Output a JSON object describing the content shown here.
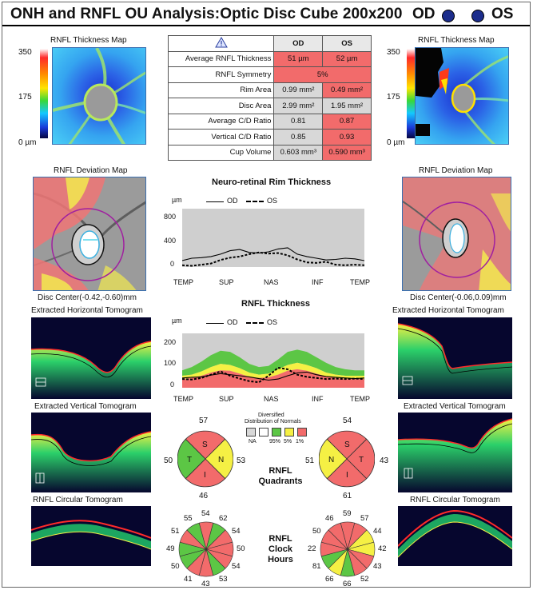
{
  "header": {
    "title": "ONH and RNFL OU Analysis:Optic Disc Cube 200x200",
    "od_label": "OD",
    "os_label": "OS"
  },
  "colors": {
    "red": "#f26b6b",
    "yellow": "#f5f044",
    "green": "#5cc645",
    "grey": "#d8d8d8",
    "eye_dot": "#1c2d8c"
  },
  "left": {
    "thickness_map_label": "RNFL Thickness Map",
    "scale_max": "350",
    "scale_mid": "175",
    "scale_min": "0 µm",
    "deviation_map_label": "RNFL Deviation Map",
    "disc_center": "Disc Center(-0.42,-0.60)mm",
    "horizontal_tomo_label": "Extracted Horizontal Tomogram",
    "vertical_tomo_label": "Extracted Vertical Tomogram",
    "circular_tomo_label": "RNFL Circular Tomogram"
  },
  "right": {
    "thickness_map_label": "RNFL Thickness Map",
    "scale_max": "350",
    "scale_mid": "175",
    "scale_min": "0 µm",
    "deviation_map_label": "RNFL Deviation Map",
    "disc_center": "Disc Center(-0.06,0.09)mm",
    "horizontal_tomo_label": "Extracted Horizontal Tomogram",
    "vertical_tomo_label": "Extracted Vertical Tomogram",
    "circular_tomo_label": "RNFL Circular Tomogram"
  },
  "params_table": {
    "warning_icon": "warning-triangle-icon",
    "col_od": "OD",
    "col_os": "OS",
    "rows": [
      {
        "name": "Average RNFL Thickness",
        "od": "51 µm",
        "os": "52 µm",
        "od_color": "red",
        "os_color": "red"
      },
      {
        "name": "RNFL Symmetry",
        "merged": "5%",
        "color": "red"
      },
      {
        "name": "Rim Area",
        "od": "0.99 mm²",
        "os": "0.49 mm²",
        "od_color": "grey",
        "os_color": "red"
      },
      {
        "name": "Disc Area",
        "od": "2.99 mm²",
        "os": "1.95 mm²",
        "od_color": "grey",
        "os_color": "grey"
      },
      {
        "name": "Average C/D Ratio",
        "od": "0.81",
        "os": "0.87",
        "od_color": "grey",
        "os_color": "red"
      },
      {
        "name": "Vertical C/D Ratio",
        "od": "0.85",
        "os": "0.93",
        "od_color": "grey",
        "os_color": "red"
      },
      {
        "name": "Cup Volume",
        "od": "0.603 mm³",
        "os": "0.590 mm³",
        "od_color": "grey",
        "os_color": "red"
      }
    ]
  },
  "rim_chart": {
    "title": "Neuro-retinal Rim Thickness",
    "unit": "µm",
    "legend_od": "OD",
    "legend_os": "OS",
    "yticks": [
      "800",
      "400",
      "0"
    ],
    "xticks": [
      "TEMP",
      "SUP",
      "NAS",
      "INF",
      "TEMP"
    ]
  },
  "rnfl_chart": {
    "title": "RNFL Thickness",
    "unit": "µm",
    "legend_od": "OD",
    "legend_os": "OS",
    "yticks": [
      "200",
      "100",
      "0"
    ],
    "xticks": [
      "TEMP",
      "SUP",
      "NAS",
      "INF",
      "TEMP"
    ]
  },
  "normative_legend": {
    "title_line1": "Diversified",
    "title_line2": "Distribution of Normals",
    "labels": [
      "NA",
      "95%",
      "5%",
      "1%"
    ]
  },
  "quadrants": {
    "title_line1": "RNFL",
    "title_line2": "Quadrants",
    "od": {
      "S": "57",
      "N": "53",
      "I": "46",
      "T": "50"
    },
    "os": {
      "S": "54",
      "N": "43",
      "I": "61",
      "T": "51"
    },
    "letters": {
      "S": "S",
      "N": "N",
      "I": "I",
      "T": "T"
    }
  },
  "clock_hours": {
    "title_line1": "RNFL",
    "title_line2": "Clock",
    "title_line3": "Hours",
    "od": [
      "54",
      "62",
      "54",
      "50",
      "54",
      "53",
      "43",
      "41",
      "50",
      "49",
      "51",
      "55"
    ],
    "os": [
      "59",
      "57",
      "44",
      "42",
      "43",
      "52",
      "66",
      "66",
      "81",
      "22",
      "50",
      "46"
    ]
  },
  "chart_data": [
    {
      "type": "line",
      "title": "Neuro-retinal Rim Thickness",
      "ylabel": "µm",
      "ylim": [
        0,
        1000
      ],
      "xticks": [
        "TEMP",
        "SUP",
        "NAS",
        "INF",
        "TEMP"
      ],
      "series": [
        {
          "name": "OD",
          "style": "solid",
          "values": [
            110,
            150,
            160,
            180,
            220,
            280,
            300,
            250,
            240,
            260,
            310,
            330,
            220,
            180,
            150,
            120,
            130,
            150,
            140,
            110
          ]
        },
        {
          "name": "OS",
          "style": "dashed",
          "values": [
            30,
            20,
            40,
            60,
            120,
            160,
            180,
            220,
            250,
            230,
            240,
            200,
            130,
            80,
            70,
            90,
            40,
            30,
            40,
            30
          ]
        }
      ]
    },
    {
      "type": "line",
      "title": "RNFL Thickness",
      "ylabel": "µm",
      "ylim": [
        0,
        250
      ],
      "xticks": [
        "TEMP",
        "SUP",
        "NAS",
        "INF",
        "TEMP"
      ],
      "series": [
        {
          "name": "OD",
          "style": "solid",
          "values": [
            45,
            48,
            50,
            58,
            65,
            60,
            55,
            50,
            42,
            35,
            40,
            55,
            68,
            72,
            60,
            52,
            48,
            45,
            42,
            45
          ]
        },
        {
          "name": "OS",
          "style": "dashed",
          "values": [
            40,
            38,
            45,
            60,
            75,
            55,
            42,
            30,
            25,
            55,
            92,
            85,
            60,
            50,
            45,
            40,
            42,
            40,
            42,
            40
          ]
        }
      ]
    }
  ]
}
